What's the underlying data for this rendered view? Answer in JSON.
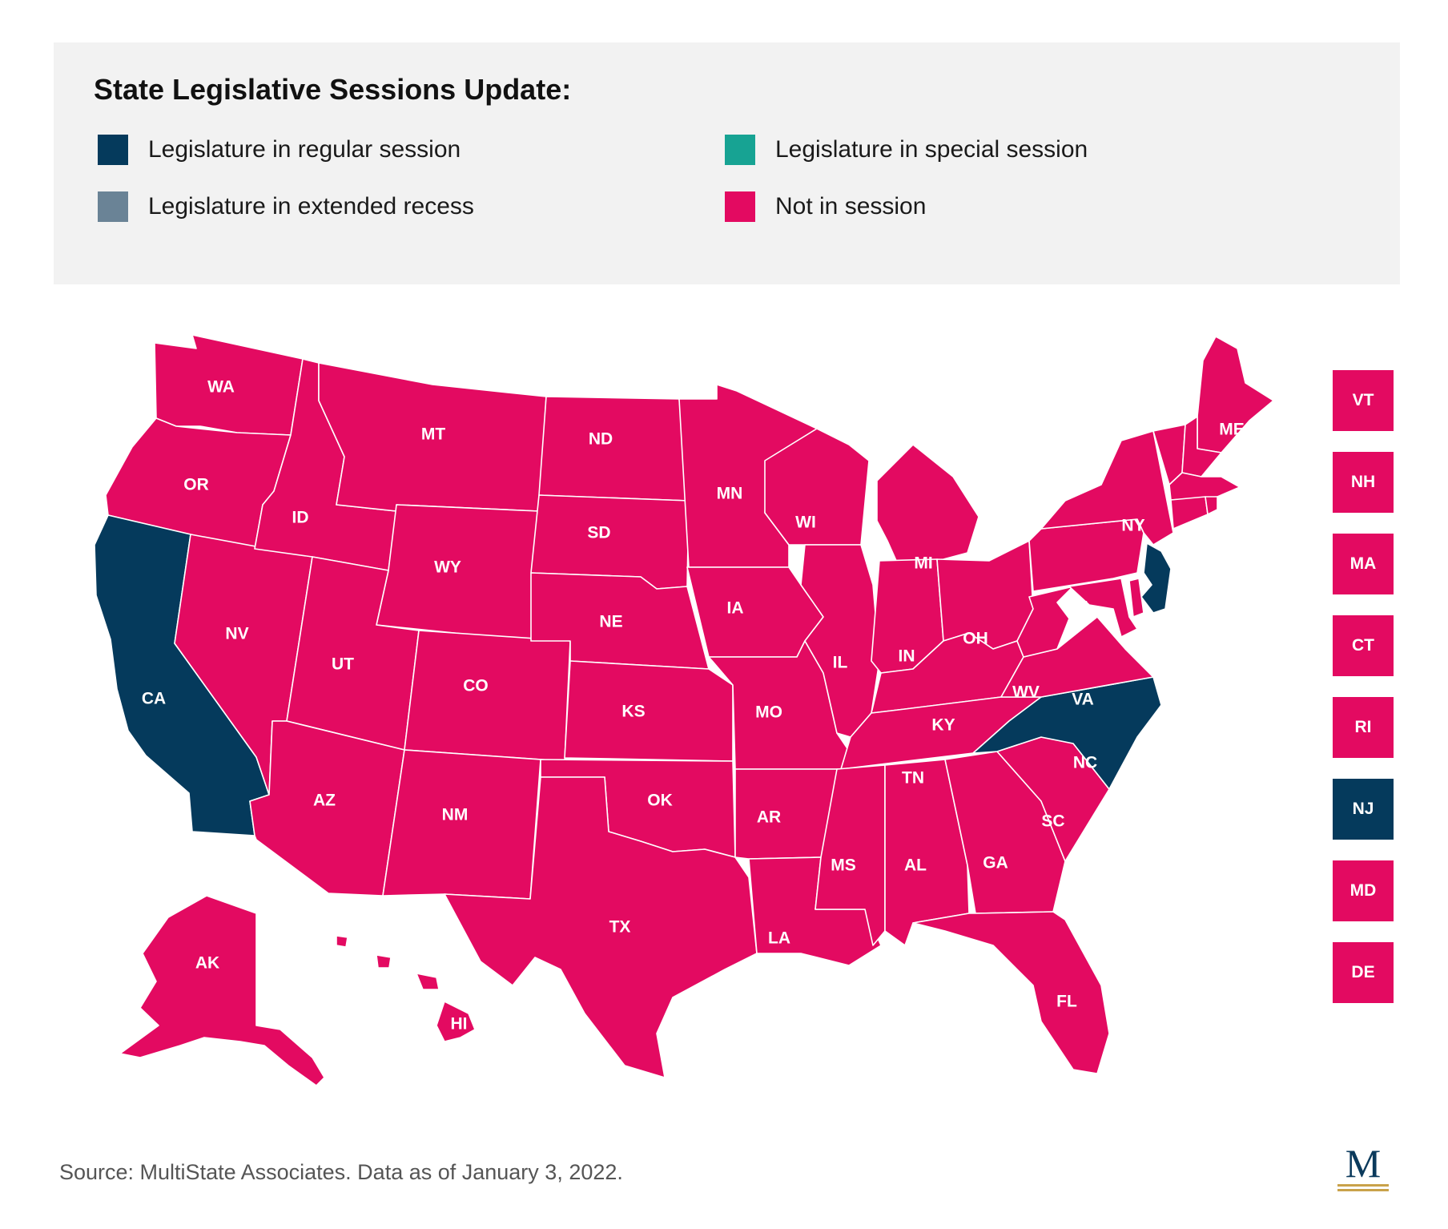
{
  "title": "State Legislative Sessions Update:",
  "colors": {
    "regular": "#053a5c",
    "special": "#17a393",
    "recess": "#6a8396",
    "not_in_session": "#e30a61",
    "panel_bg": "#f2f2f2"
  },
  "legend": [
    {
      "label": "Legislature in regular session",
      "status": "regular"
    },
    {
      "label": "Legislature in special session",
      "status": "special"
    },
    {
      "label": "Legislature in extended recess",
      "status": "recess"
    },
    {
      "label": "Not in session",
      "status": "not_in_session"
    }
  ],
  "states": {
    "WA": "not_in_session",
    "OR": "not_in_session",
    "CA": "regular",
    "ID": "not_in_session",
    "NV": "not_in_session",
    "MT": "not_in_session",
    "WY": "not_in_session",
    "UT": "not_in_session",
    "AZ": "not_in_session",
    "CO": "not_in_session",
    "NM": "not_in_session",
    "ND": "not_in_session",
    "SD": "not_in_session",
    "NE": "not_in_session",
    "KS": "not_in_session",
    "OK": "not_in_session",
    "TX": "not_in_session",
    "MN": "not_in_session",
    "IA": "not_in_session",
    "MO": "not_in_session",
    "AR": "not_in_session",
    "LA": "not_in_session",
    "WI": "not_in_session",
    "IL": "not_in_session",
    "MI": "not_in_session",
    "IN": "not_in_session",
    "OH": "not_in_session",
    "KY": "not_in_session",
    "TN": "not_in_session",
    "MS": "not_in_session",
    "AL": "not_in_session",
    "GA": "not_in_session",
    "FL": "not_in_session",
    "SC": "not_in_session",
    "NC": "regular",
    "VA": "not_in_session",
    "WV": "not_in_session",
    "PA": "not_in_session",
    "NY": "not_in_session",
    "ME": "not_in_session",
    "AK": "not_in_session",
    "HI": "not_in_session",
    "NJ": "regular",
    "VT": "not_in_session",
    "NH": "not_in_session",
    "MA": "not_in_session",
    "CT": "not_in_session",
    "RI": "not_in_session",
    "MD": "not_in_session",
    "DE": "not_in_session"
  },
  "northeast_boxes": [
    {
      "abbr": "VT",
      "status": "not_in_session"
    },
    {
      "abbr": "NH",
      "status": "not_in_session"
    },
    {
      "abbr": "MA",
      "status": "not_in_session"
    },
    {
      "abbr": "CT",
      "status": "not_in_session"
    },
    {
      "abbr": "RI",
      "status": "not_in_session"
    },
    {
      "abbr": "NJ",
      "status": "regular"
    },
    {
      "abbr": "MD",
      "status": "not_in_session"
    },
    {
      "abbr": "DE",
      "status": "not_in_session"
    }
  ],
  "source": "Source: MultiState Associates. Data as of January 3, 2022.",
  "logo": {
    "letter": "M"
  }
}
